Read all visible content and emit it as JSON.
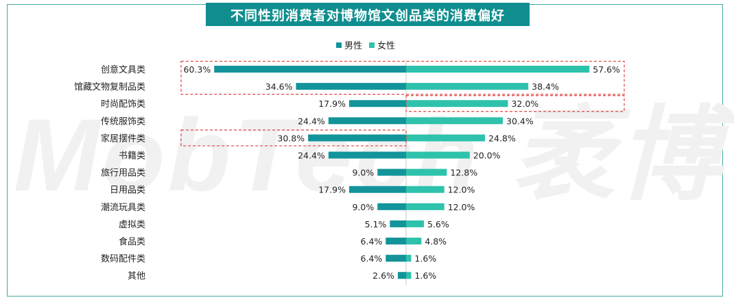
{
  "title": "不同性别消费者对博物馆文创品类的消费偏好",
  "watermark": "MobTech 袤博",
  "colors": {
    "male": "#12949a",
    "female": "#2ec2ac",
    "frame": "#3fa7a0",
    "highlight": "#e0403a"
  },
  "chart_data": {
    "type": "bar",
    "orientation": "horizontal-butterfly",
    "categories": [
      "创意文具类",
      "馆藏文物复制品类",
      "时尚配饰类",
      "传统服饰类",
      "家居摆件类",
      "书籍类",
      "旅行用品类",
      "日用品类",
      "潮流玩具类",
      "虚拟类",
      "食品类",
      "数码配件类",
      "其他"
    ],
    "series": [
      {
        "name": "男性",
        "values": [
          60.3,
          34.6,
          17.9,
          24.4,
          30.8,
          24.4,
          9.0,
          17.9,
          9.0,
          5.1,
          6.4,
          6.4,
          2.6
        ]
      },
      {
        "name": "女性",
        "values": [
          57.6,
          38.4,
          32.0,
          30.4,
          24.8,
          20.0,
          12.8,
          12.0,
          12.0,
          5.6,
          4.8,
          1.6,
          1.6
        ]
      }
    ],
    "value_labels": {
      "male": [
        "60.3%",
        "34.6%",
        "17.9%",
        "24.4%",
        "30.8%",
        "24.4%",
        "9.0%",
        "17.9%",
        "9.0%",
        "5.1%",
        "6.4%",
        "6.4%",
        "2.6%"
      ],
      "female": [
        "57.6%",
        "38.4%",
        "32.0%",
        "30.4%",
        "24.8%",
        "20.0%",
        "12.8%",
        "12.0%",
        "12.0%",
        "5.6%",
        "4.8%",
        "1.6%",
        "1.6%"
      ]
    },
    "legend_position": "top-center",
    "grid": false,
    "highlights": [
      {
        "side": "both",
        "categories": [
          "创意文具类",
          "馆藏文物复制品类"
        ]
      },
      {
        "side": "female",
        "categories": [
          "时尚配饰类"
        ]
      },
      {
        "side": "male",
        "categories": [
          "家居摆件类"
        ]
      }
    ]
  }
}
